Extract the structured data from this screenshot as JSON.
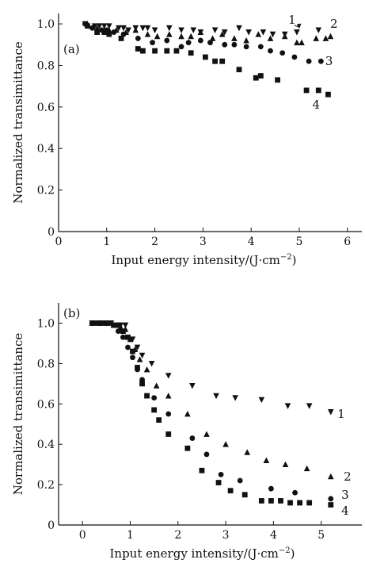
{
  "chart_data": [
    {
      "type": "scatter",
      "panel_label": "(a)",
      "xlabel": "Input energy intensity/(J·cm⁻²)",
      "ylabel": "Normalized transimittance",
      "xlim": [
        0,
        6.3
      ],
      "ylim": [
        0,
        1.05
      ],
      "xticks": [
        "0",
        "1",
        "2",
        "3",
        "4",
        "5",
        "6"
      ],
      "yticks": [
        "0",
        "0.2",
        "0.4",
        "0.6",
        "0.8",
        "1.0"
      ],
      "grid": false,
      "series": [
        {
          "name": "1",
          "marker": "triangle-down",
          "x": [
            0.55,
            0.75,
            0.85,
            0.95,
            1.05,
            1.25,
            1.35,
            1.45,
            1.6,
            1.75,
            1.85,
            2.0,
            2.3,
            2.55,
            2.8,
            2.95,
            3.25,
            3.45,
            3.75,
            3.95,
            4.25,
            4.45,
            4.7,
            4.95,
            5.4
          ],
          "y": [
            1.0,
            0.99,
            0.99,
            0.99,
            0.99,
            0.98,
            0.98,
            0.97,
            0.98,
            0.98,
            0.98,
            0.97,
            0.98,
            0.97,
            0.97,
            0.96,
            0.97,
            0.96,
            0.98,
            0.96,
            0.96,
            0.95,
            0.95,
            0.96,
            0.97
          ]
        },
        {
          "name": "2",
          "marker": "triangle-up",
          "x": [
            0.6,
            0.8,
            1.05,
            1.2,
            1.4,
            1.6,
            1.85,
            2.05,
            2.3,
            2.55,
            2.75,
            2.95,
            3.2,
            3.4,
            3.65,
            3.9,
            4.15,
            4.4,
            4.7,
            4.95,
            5.05,
            5.35,
            5.55,
            5.65
          ],
          "y": [
            1.0,
            0.98,
            0.97,
            0.97,
            0.96,
            0.97,
            0.95,
            0.94,
            0.95,
            0.94,
            0.94,
            0.96,
            0.93,
            0.95,
            0.93,
            0.92,
            0.95,
            0.93,
            0.94,
            0.91,
            0.91,
            0.93,
            0.93,
            0.94
          ]
        },
        {
          "name": "3",
          "marker": "circle",
          "x": [
            0.55,
            0.7,
            0.9,
            1.0,
            1.15,
            1.35,
            1.65,
            1.95,
            2.25,
            2.55,
            2.7,
            2.95,
            3.15,
            3.45,
            3.65,
            3.9,
            4.2,
            4.4,
            4.65,
            4.9,
            5.2,
            5.45
          ],
          "y": [
            1.0,
            0.98,
            0.97,
            0.97,
            0.96,
            0.95,
            0.93,
            0.91,
            0.92,
            0.89,
            0.91,
            0.92,
            0.91,
            0.9,
            0.9,
            0.89,
            0.89,
            0.87,
            0.86,
            0.84,
            0.82,
            0.82
          ]
        },
        {
          "name": "4",
          "marker": "square",
          "x": [
            0.6,
            0.8,
            0.95,
            1.05,
            1.3,
            1.65,
            1.75,
            2.0,
            2.25,
            2.45,
            2.75,
            3.05,
            3.25,
            3.4,
            3.75,
            4.1,
            4.2,
            4.55,
            5.15,
            5.4,
            5.6
          ],
          "y": [
            0.99,
            0.96,
            0.96,
            0.95,
            0.93,
            0.88,
            0.87,
            0.87,
            0.87,
            0.87,
            0.86,
            0.84,
            0.82,
            0.82,
            0.78,
            0.74,
            0.75,
            0.73,
            0.68,
            0.68,
            0.66
          ]
        }
      ],
      "annotations": [
        {
          "text": "1",
          "x": 4.85,
          "y": 1.02,
          "arrow_to": [
            5.0,
            0.965
          ]
        },
        {
          "text": "2",
          "x": 5.72,
          "y": 1.0
        },
        {
          "text": "3",
          "x": 5.62,
          "y": 0.82
        },
        {
          "text": "4",
          "x": 5.35,
          "y": 0.61
        }
      ]
    },
    {
      "type": "scatter",
      "panel_label": "(b)",
      "xlabel": "Input energy intensity/(J·cm⁻²)",
      "ylabel": "Normalized transimittance",
      "xlim": [
        -0.5,
        5.85
      ],
      "ylim": [
        0,
        1.1
      ],
      "xticks": [
        "0",
        "1",
        "2",
        "3",
        "4",
        "5"
      ],
      "yticks": [
        "0",
        "0.2",
        "0.4",
        "0.6",
        "0.8",
        "1.0"
      ],
      "grid": false,
      "series": [
        {
          "name": "1",
          "marker": "triangle-down",
          "x": [
            0.2,
            0.35,
            0.5,
            0.6,
            0.7,
            0.8,
            0.9,
            1.05,
            1.15,
            1.25,
            1.45,
            1.8,
            2.3,
            2.8,
            3.2,
            3.75,
            4.3,
            4.75,
            5.2
          ],
          "y": [
            1.0,
            1.0,
            1.0,
            1.0,
            0.99,
            0.99,
            0.99,
            0.92,
            0.88,
            0.84,
            0.8,
            0.74,
            0.69,
            0.64,
            0.63,
            0.62,
            0.59,
            0.59,
            0.56
          ]
        },
        {
          "name": "2",
          "marker": "triangle-up",
          "x": [
            0.2,
            0.35,
            0.5,
            0.65,
            0.8,
            0.9,
            1.0,
            1.1,
            1.2,
            1.35,
            1.55,
            1.8,
            2.2,
            2.6,
            3.0,
            3.45,
            3.85,
            4.25,
            4.7,
            5.2
          ],
          "y": [
            1.0,
            1.0,
            1.0,
            0.99,
            0.98,
            0.97,
            0.92,
            0.87,
            0.82,
            0.77,
            0.69,
            0.64,
            0.55,
            0.45,
            0.4,
            0.36,
            0.32,
            0.3,
            0.28,
            0.24
          ]
        },
        {
          "name": "3",
          "marker": "circle",
          "x": [
            0.2,
            0.35,
            0.5,
            0.65,
            0.75,
            0.85,
            0.95,
            1.05,
            1.15,
            1.25,
            1.5,
            1.8,
            2.3,
            2.6,
            2.9,
            3.3,
            3.95,
            4.45,
            5.2
          ],
          "y": [
            1.0,
            1.0,
            1.0,
            0.99,
            0.96,
            0.93,
            0.88,
            0.83,
            0.77,
            0.72,
            0.63,
            0.55,
            0.43,
            0.35,
            0.25,
            0.22,
            0.18,
            0.16,
            0.13
          ]
        },
        {
          "name": "4",
          "marker": "square",
          "x": [
            0.25,
            0.4,
            0.55,
            0.75,
            0.85,
            0.95,
            1.05,
            1.15,
            1.25,
            1.35,
            1.5,
            1.6,
            1.8,
            2.2,
            2.5,
            2.85,
            3.1,
            3.4,
            3.75,
            3.95,
            4.15,
            4.35,
            4.55,
            4.75,
            5.2
          ],
          "y": [
            1.0,
            1.0,
            1.0,
            0.99,
            0.96,
            0.93,
            0.86,
            0.78,
            0.7,
            0.64,
            0.57,
            0.52,
            0.45,
            0.38,
            0.27,
            0.21,
            0.17,
            0.15,
            0.12,
            0.12,
            0.12,
            0.11,
            0.11,
            0.11,
            0.1
          ]
        }
      ],
      "annotations": [
        {
          "text": "1",
          "x": 5.42,
          "y": 0.55
        },
        {
          "text": "2",
          "x": 5.55,
          "y": 0.24
        },
        {
          "text": "3",
          "x": 5.5,
          "y": 0.15
        },
        {
          "text": "4",
          "x": 5.5,
          "y": 0.07
        }
      ]
    }
  ]
}
